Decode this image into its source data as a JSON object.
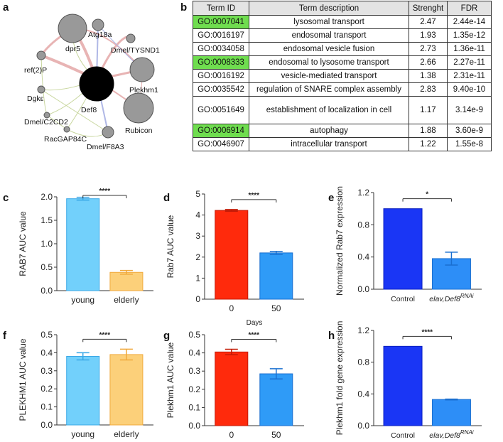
{
  "panel_labels": {
    "a": "a",
    "b": "b",
    "c": "c",
    "d": "d",
    "e": "e",
    "f": "f",
    "g": "g",
    "h": "h"
  },
  "network": {
    "center_label": "Def8",
    "nodes": [
      "dpr5",
      "Atg18a",
      "Dmel/TYSND1",
      "ref(2)P",
      "Plekhm1",
      "Dgkε",
      "Dmel/C2CD2",
      "Rubicon",
      "RacGAP84C",
      "Dmel/F8A3"
    ]
  },
  "table": {
    "headers": [
      "Term ID",
      "Term description",
      "Strenght",
      "FDR"
    ],
    "rows": [
      {
        "id": "GO:0007041",
        "desc": "lysosomal transport",
        "strength": "2.47",
        "fdr": "2.44e-14",
        "highlight": true
      },
      {
        "id": "GO:0016197",
        "desc": "endosomal transport",
        "strength": "1.93",
        "fdr": "1.35e-12",
        "highlight": false
      },
      {
        "id": "GO:0034058",
        "desc": "endosomal vesicle fusion",
        "strength": "2.73",
        "fdr": "1.36e-11",
        "highlight": false
      },
      {
        "id": "GO:0008333",
        "desc": "endosomal to lysosome transport",
        "strength": "2.66",
        "fdr": "2.27e-11",
        "highlight": true
      },
      {
        "id": "GO:0016192",
        "desc": "vesicle-mediated transport",
        "strength": "1.38",
        "strength2": "",
        "fdr": "2.31e-11",
        "highlight": false
      },
      {
        "id": "GO:0035542",
        "desc": "regulation of SNARE complex assembly",
        "strength": "2.83",
        "fdr": "9.40e-10",
        "highlight": false
      },
      {
        "id": "GO:0051649",
        "desc": "establishment of localization in cell",
        "strength": "1.17",
        "fdr": "3.14e-9",
        "highlight": false
      },
      {
        "id": "GO:0006914",
        "desc": "autophagy",
        "strength": "1.88",
        "fdr": "3.60e-9",
        "highlight": true
      },
      {
        "id": "GO:0046907",
        "desc": "intracellular transport",
        "strength": "1.22",
        "fdr": "1.55e-8",
        "highlight": false
      }
    ]
  },
  "chart_data": [
    {
      "panel": "c",
      "type": "bar",
      "categories": [
        "young",
        "elderly"
      ],
      "values": [
        1.96,
        0.39
      ],
      "errors": [
        0.03,
        0.04
      ],
      "ylabel": "RAB7 AUC value",
      "xlabel": "",
      "ylim": [
        0,
        2.0
      ],
      "yticks": [
        "0.0",
        "0.5",
        "1.0",
        "1.5",
        "2.0"
      ],
      "significance": "****",
      "colors": [
        "#72d0fb",
        "#fcd07a"
      ],
      "edge_colors": [
        "#3aa8e6",
        "#f0a93c"
      ]
    },
    {
      "panel": "d",
      "type": "bar",
      "categories": [
        "0",
        "50"
      ],
      "values": [
        4.22,
        2.2
      ],
      "errors": [
        0.04,
        0.07
      ],
      "ylabel": "Rab7 AUC value",
      "xlabel": "Days",
      "ylim": [
        0,
        5
      ],
      "yticks": [
        "0",
        "1",
        "2",
        "3",
        "4",
        "5"
      ],
      "significance": "****",
      "colors": [
        "#ff2a0c",
        "#2f9bf7"
      ],
      "edge_colors": [
        "#c41a06",
        "#1a6fd0"
      ]
    },
    {
      "panel": "e",
      "type": "bar",
      "categories": [
        "Control",
        "elav,Def8"
      ],
      "category_superscript": [
        "",
        "RNAi"
      ],
      "values": [
        1.0,
        0.38
      ],
      "errors": [
        0.0,
        0.08
      ],
      "ylabel": "Normalized Rab7 expression",
      "xlabel": "",
      "ylim": [
        0,
        1.2
      ],
      "yticks": [
        "0.0",
        "0.4",
        "0.8",
        "1.2"
      ],
      "significance": "*",
      "colors": [
        "#1a36f5",
        "#2d8ef7"
      ],
      "edge_colors": [
        "#0a1fc0",
        "#1a6fd0"
      ]
    },
    {
      "panel": "f",
      "type": "bar",
      "categories": [
        "young",
        "elderly"
      ],
      "values": [
        0.38,
        0.39
      ],
      "errors": [
        0.02,
        0.03
      ],
      "ylabel": "PLEKHM1 AUC value",
      "xlabel": "",
      "ylim": [
        0,
        0.5
      ],
      "yticks": [
        "0.0",
        "0.1",
        "0.2",
        "0.3",
        "0.4",
        "0.5"
      ],
      "significance": "****",
      "colors": [
        "#72d0fb",
        "#fcd07a"
      ],
      "edge_colors": [
        "#3aa8e6",
        "#f0a93c"
      ]
    },
    {
      "panel": "g",
      "type": "bar",
      "categories": [
        "0",
        "50"
      ],
      "values": [
        0.405,
        0.285
      ],
      "errors": [
        0.015,
        0.028
      ],
      "ylabel": "Plekhm1 AUC value",
      "xlabel": "Days",
      "ylim": [
        0,
        0.5
      ],
      "yticks": [
        "0.0",
        "0.1",
        "0.2",
        "0.3",
        "0.4",
        "0.5"
      ],
      "significance": "****",
      "colors": [
        "#ff2a0c",
        "#2f9bf7"
      ],
      "edge_colors": [
        "#c41a06",
        "#1a6fd0"
      ]
    },
    {
      "panel": "h",
      "type": "bar",
      "categories": [
        "Control",
        "elav,Def8"
      ],
      "category_superscript": [
        "",
        "RNAi"
      ],
      "values": [
        1.0,
        0.33
      ],
      "errors": [
        0.0,
        0.005
      ],
      "ylabel": "Plekhm1 fold gene expression",
      "xlabel": "",
      "ylim": [
        0,
        1.2
      ],
      "yticks": [
        "0.0",
        "0.4",
        "0.8",
        "1.2"
      ],
      "significance": "****",
      "colors": [
        "#1a36f5",
        "#2d8ef7"
      ],
      "edge_colors": [
        "#0a1fc0",
        "#1a6fd0"
      ]
    }
  ]
}
